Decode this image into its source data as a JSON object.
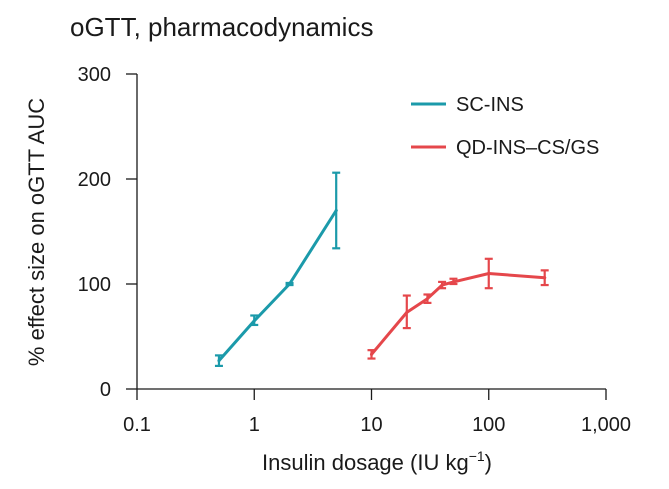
{
  "chart_data": {
    "type": "line",
    "title": "oGTT, pharmacodynamics",
    "xlabel": "Insulin dosage (IU kg",
    "xlabel_sup": "−1",
    "xlabel_close": ")",
    "ylabel": "% effect size on oGTT AUC",
    "xscale": "log",
    "xlim": [
      0.1,
      1000
    ],
    "ylim": [
      0,
      300
    ],
    "xticks": [
      0.1,
      1,
      10,
      100,
      1000
    ],
    "xtick_labels": [
      "0.1",
      "1",
      "10",
      "100",
      "1,000"
    ],
    "yticks": [
      0,
      100,
      200,
      300
    ],
    "ytick_labels": [
      "0",
      "100",
      "200",
      "300"
    ],
    "grid": false,
    "legend_position": "top-right",
    "series": [
      {
        "name": "SC-INS",
        "color": "#1b9aaa",
        "x": [
          0.5,
          1,
          2,
          5
        ],
        "y": [
          27,
          65,
          100,
          170
        ],
        "err_low": [
          22,
          61,
          99,
          134
        ],
        "err_high": [
          32,
          70,
          101,
          206
        ]
      },
      {
        "name": "QD-INS–CS/GS",
        "color": "#e5474b",
        "x": [
          10,
          20,
          30,
          40,
          50,
          100,
          300
        ],
        "y": [
          33,
          73,
          86,
          99,
          102,
          110,
          106
        ],
        "err_low": [
          29,
          58,
          82,
          96,
          100,
          96,
          99
        ],
        "err_high": [
          37,
          89,
          90,
          102,
          105,
          124,
          113
        ]
      }
    ]
  }
}
